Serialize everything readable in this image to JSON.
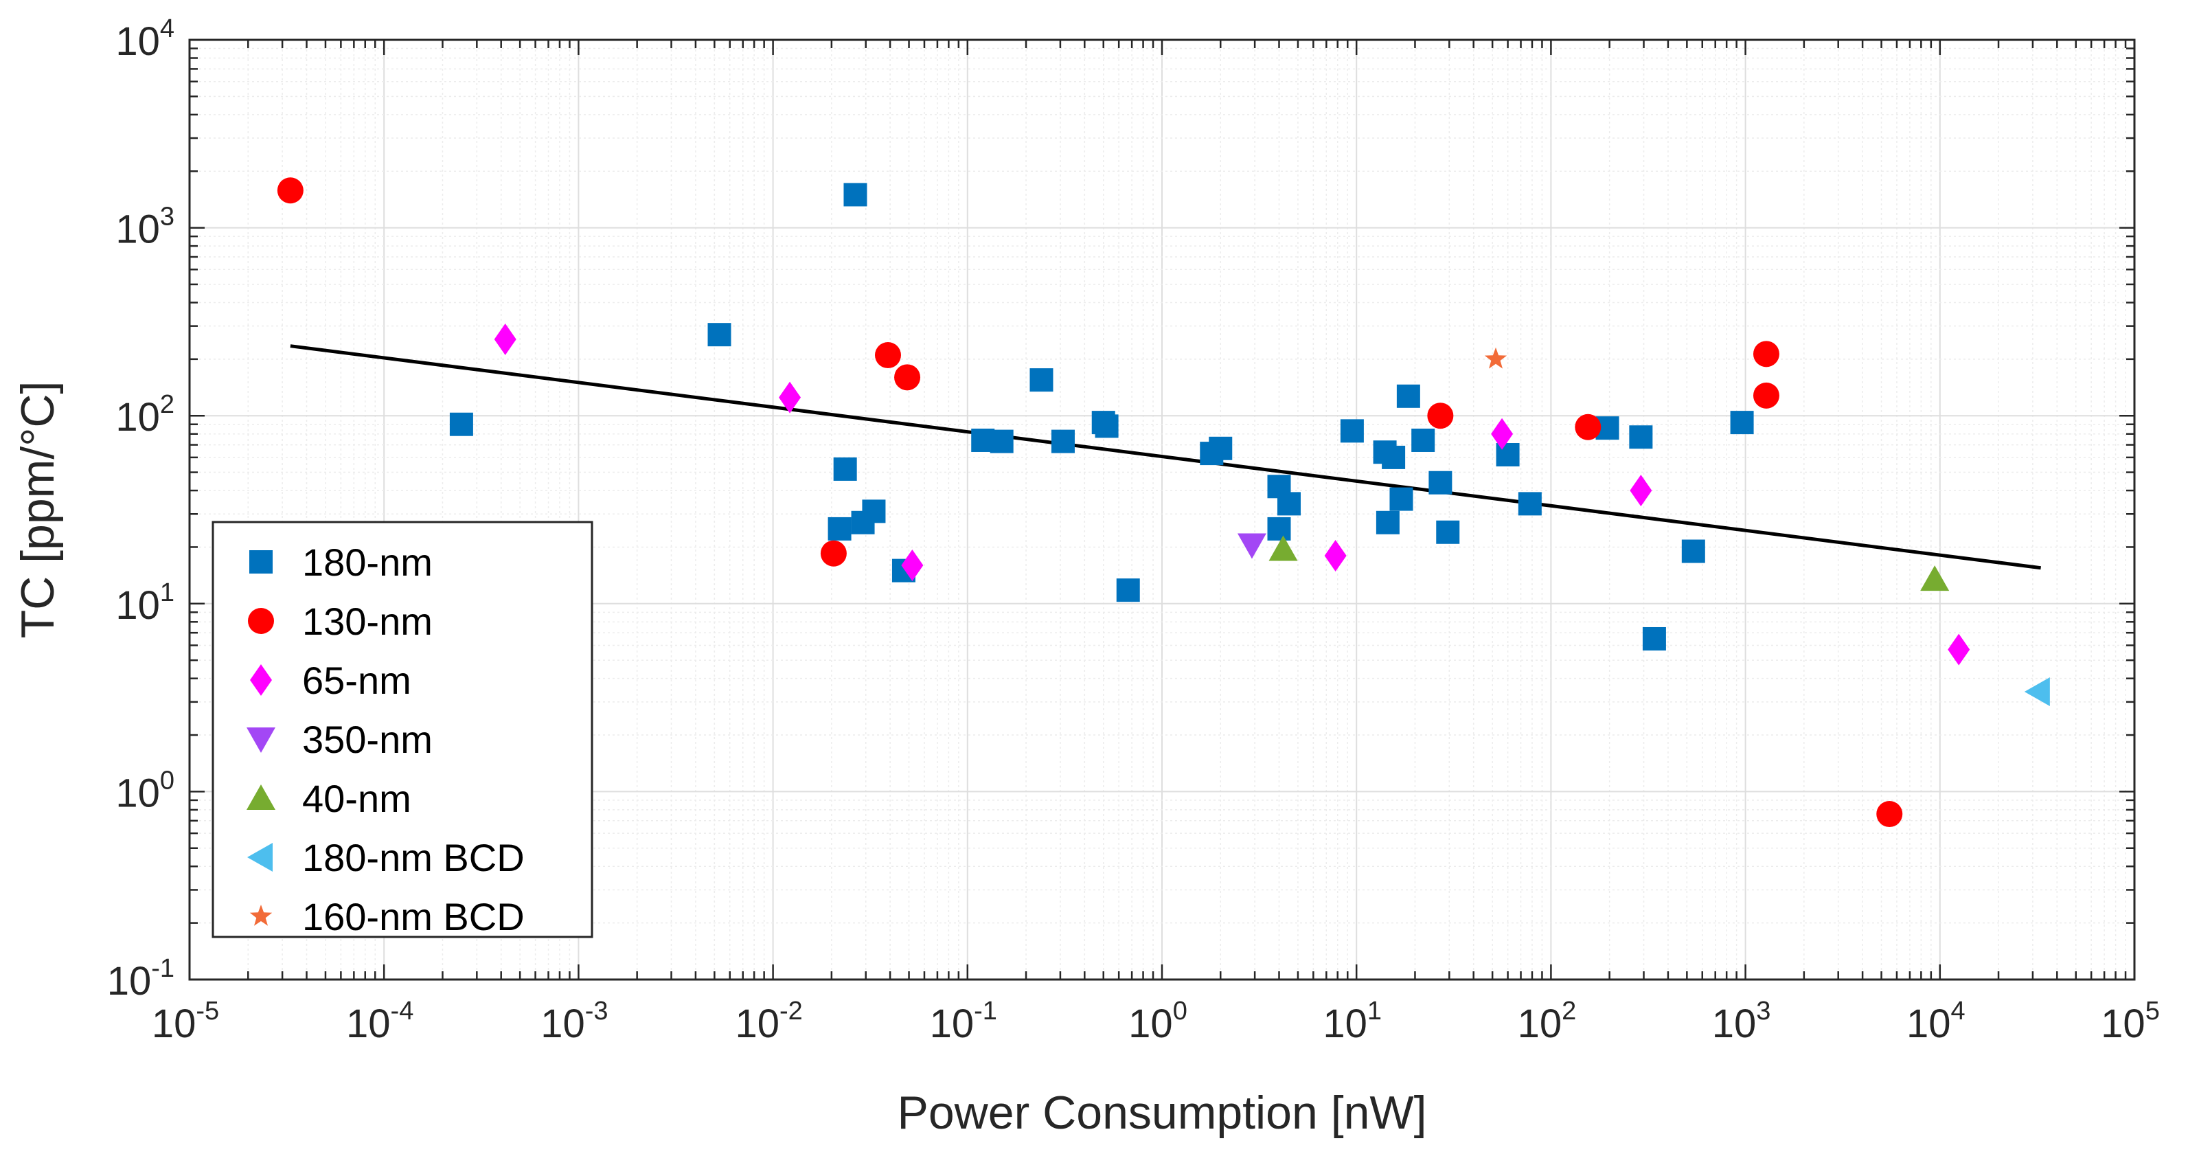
{
  "chart_data": {
    "type": "scatter",
    "xscale": "log",
    "yscale": "log",
    "xlim": [
      1e-05,
      100000.0
    ],
    "ylim": [
      0.1,
      10000
    ],
    "xlabel": "Power Consumption [nW]",
    "ylabel": "TC [ppm/°C]",
    "grid": true,
    "legend_position": "bottom-left",
    "x_ticks": [
      {
        "base": "10",
        "exp": "-5",
        "value": 1e-05
      },
      {
        "base": "10",
        "exp": "-4",
        "value": 0.0001
      },
      {
        "base": "10",
        "exp": "-3",
        "value": 0.001
      },
      {
        "base": "10",
        "exp": "-2",
        "value": 0.01
      },
      {
        "base": "10",
        "exp": "-1",
        "value": 0.1
      },
      {
        "base": "10",
        "exp": "0",
        "value": 1
      },
      {
        "base": "10",
        "exp": "1",
        "value": 10
      },
      {
        "base": "10",
        "exp": "2",
        "value": 100
      },
      {
        "base": "10",
        "exp": "3",
        "value": 1000
      },
      {
        "base": "10",
        "exp": "4",
        "value": 10000
      },
      {
        "base": "10",
        "exp": "5",
        "value": 100000
      }
    ],
    "y_ticks": [
      {
        "base": "10",
        "exp": "-1",
        "value": 0.1
      },
      {
        "base": "10",
        "exp": "0",
        "value": 1
      },
      {
        "base": "10",
        "exp": "1",
        "value": 10
      },
      {
        "base": "10",
        "exp": "2",
        "value": 100
      },
      {
        "base": "10",
        "exp": "3",
        "value": 1000
      },
      {
        "base": "10",
        "exp": "4",
        "value": 10000
      }
    ],
    "trend_line": {
      "name": "fit",
      "color": "#000000",
      "x": [
        3.3e-05,
        33000
      ],
      "y": [
        235,
        15.5
      ]
    },
    "series": [
      {
        "name": "180-nm",
        "marker": "square",
        "color": "#0072BD",
        "points": [
          [
            0.00025,
            90
          ],
          [
            0.0053,
            270
          ],
          [
            0.0265,
            1500
          ],
          [
            0.022,
            25
          ],
          [
            0.0235,
            52
          ],
          [
            0.029,
            27
          ],
          [
            0.033,
            31
          ],
          [
            0.047,
            15
          ],
          [
            0.12,
            74
          ],
          [
            0.15,
            73
          ],
          [
            0.24,
            155
          ],
          [
            0.31,
            73
          ],
          [
            0.5,
            92
          ],
          [
            0.52,
            88
          ],
          [
            0.67,
            11.8
          ],
          [
            1.8,
            63
          ],
          [
            2.0,
            67
          ],
          [
            4.0,
            42
          ],
          [
            4.5,
            34
          ],
          [
            4.0,
            25
          ],
          [
            9.5,
            83
          ],
          [
            14,
            64
          ],
          [
            15.5,
            60
          ],
          [
            14.5,
            27
          ],
          [
            17,
            36
          ],
          [
            18.5,
            127
          ],
          [
            22,
            74
          ],
          [
            27,
            44
          ],
          [
            29.5,
            24
          ],
          [
            60,
            62
          ],
          [
            78,
            34
          ],
          [
            195,
            86
          ],
          [
            290,
            77
          ],
          [
            340,
            6.5
          ],
          [
            540,
            19
          ],
          [
            960,
            92
          ]
        ]
      },
      {
        "name": "130-nm",
        "marker": "circle",
        "color": "#FF0000",
        "points": [
          [
            3.3e-05,
            1580
          ],
          [
            0.0205,
            18.5
          ],
          [
            0.039,
            210
          ],
          [
            0.049,
            160
          ],
          [
            27,
            100
          ],
          [
            155,
            87
          ],
          [
            1280,
            213
          ],
          [
            1280,
            128
          ],
          [
            5500,
            0.76
          ]
        ]
      },
      {
        "name": "65-nm",
        "marker": "diamond",
        "color": "#FF00FF",
        "points": [
          [
            0.00042,
            255
          ],
          [
            0.0122,
            125
          ],
          [
            0.052,
            16
          ],
          [
            7.8,
            18
          ],
          [
            56,
            80
          ],
          [
            290,
            40
          ],
          [
            12500,
            5.7
          ]
        ]
      },
      {
        "name": "350-nm",
        "marker": "triangle-down",
        "color": "#A347F5",
        "points": [
          [
            2.9,
            20.5
          ]
        ]
      },
      {
        "name": "40-nm",
        "marker": "triangle-up",
        "color": "#77AC30",
        "points": [
          [
            4.2,
            19.5
          ],
          [
            9400,
            13.5
          ]
        ]
      },
      {
        "name": "180-nm BCD",
        "marker": "triangle-left",
        "color": "#4DBEEE",
        "points": [
          [
            32000,
            3.4
          ]
        ]
      },
      {
        "name": "160-nm BCD",
        "marker": "star",
        "color": "#F26B38",
        "points": [
          [
            52,
            200
          ]
        ]
      }
    ]
  }
}
